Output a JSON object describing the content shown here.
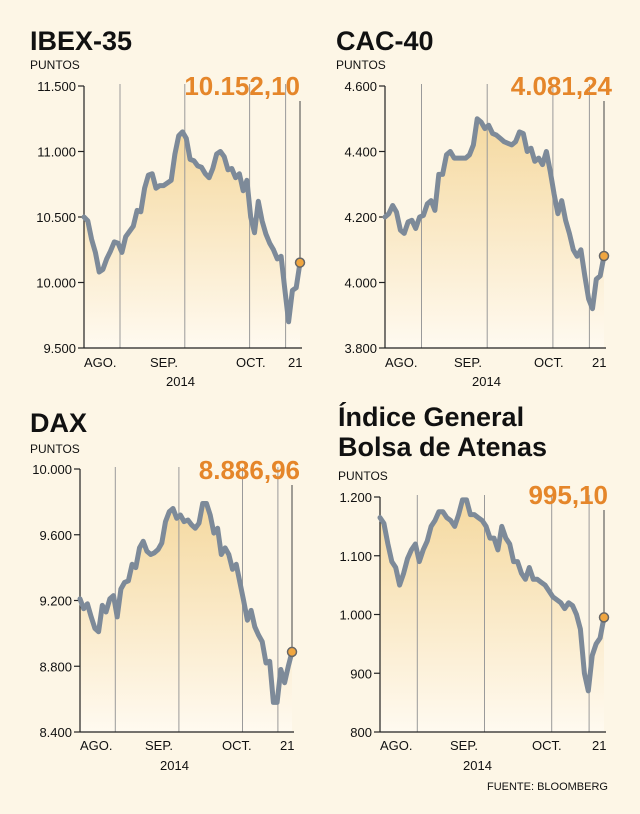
{
  "source": "FUENTE: BLOOMBERG",
  "colors": {
    "background": "#fdf6e6",
    "line": "#7d8a99",
    "marker": "#f0a640",
    "value_text": "#e5862a",
    "area_top": "#f5d9a0",
    "area_bottom": "#fffaf0"
  },
  "chart_data": [
    {
      "type": "area",
      "title": "IBEX-35",
      "unit": "PUNTOS",
      "last_value_label": "10.152,10",
      "yticks": [
        "11.500",
        "11.000",
        "10.500",
        "10.000",
        "9.500"
      ],
      "ylim": [
        9500,
        11500
      ],
      "xlabels": [
        "AGO.",
        "SEP.",
        "2014",
        "OCT.",
        "21"
      ],
      "x_range": [
        0,
        60
      ],
      "separators": [
        10,
        28,
        46,
        56
      ],
      "marker_index": 60,
      "values": [
        10500,
        10470,
        10330,
        10230,
        10080,
        10100,
        10180,
        10240,
        10310,
        10300,
        10230,
        10350,
        10390,
        10430,
        10550,
        10540,
        10720,
        10820,
        10830,
        10720,
        10740,
        10740,
        10760,
        10780,
        10980,
        11120,
        11150,
        11100,
        10940,
        10930,
        10890,
        10880,
        10830,
        10800,
        10870,
        10980,
        11000,
        10960,
        10860,
        10870,
        10800,
        10830,
        10700,
        10780,
        10500,
        10380,
        10620,
        10470,
        10370,
        10300,
        10250,
        10180,
        10200,
        9950,
        9700,
        9940,
        9960,
        10152
      ]
    },
    {
      "type": "area",
      "title": "CAC-40",
      "unit": "PUNTOS",
      "last_value_label": "4.081,24",
      "yticks": [
        "4.600",
        "4.400",
        "4.200",
        "4.000",
        "3.800"
      ],
      "ylim": [
        3800,
        4600
      ],
      "xlabels": [
        "AGO.",
        "SEP.",
        "2014",
        "OCT.",
        "21"
      ],
      "x_range": [
        0,
        60
      ],
      "separators": [
        10,
        28,
        46,
        56
      ],
      "marker_index": 60,
      "values": [
        4200,
        4210,
        4235,
        4215,
        4160,
        4150,
        4185,
        4190,
        4165,
        4200,
        4205,
        4240,
        4250,
        4220,
        4330,
        4330,
        4390,
        4400,
        4380,
        4380,
        4380,
        4380,
        4390,
        4420,
        4500,
        4490,
        4470,
        4480,
        4455,
        4450,
        4440,
        4430,
        4425,
        4420,
        4430,
        4460,
        4455,
        4400,
        4410,
        4370,
        4380,
        4360,
        4400,
        4340,
        4270,
        4210,
        4250,
        4190,
        4150,
        4100,
        4080,
        4100,
        4020,
        3950,
        3920,
        4010,
        4020,
        4081
      ]
    },
    {
      "type": "area",
      "title": "DAX",
      "unit": "PUNTOS",
      "last_value_label": "8.886,96",
      "yticks": [
        "10.000",
        "9.600",
        "9.200",
        "8.800",
        "8.400"
      ],
      "ylim": [
        8400,
        10000
      ],
      "xlabels": [
        "AGO.",
        "SEP.",
        "2014",
        "OCT.",
        "21"
      ],
      "x_range": [
        0,
        60
      ],
      "separators": [
        10,
        28,
        46,
        56
      ],
      "marker_index": 60,
      "values": [
        9210,
        9150,
        9180,
        9100,
        9030,
        9010,
        9170,
        9130,
        9210,
        9230,
        9100,
        9270,
        9310,
        9320,
        9420,
        9400,
        9520,
        9560,
        9500,
        9480,
        9490,
        9510,
        9550,
        9680,
        9740,
        9760,
        9700,
        9720,
        9680,
        9690,
        9660,
        9640,
        9670,
        9790,
        9790,
        9720,
        9610,
        9640,
        9480,
        9520,
        9480,
        9390,
        9420,
        9310,
        9200,
        9080,
        9140,
        9040,
        8990,
        8950,
        8820,
        8830,
        8580,
        8580,
        8780,
        8700,
        8800,
        8887
      ]
    },
    {
      "type": "area",
      "title": "Índice General",
      "title2": "Bolsa de Atenas",
      "unit": "PUNTOS",
      "last_value_label": "995,10",
      "yticks": [
        "1.200",
        "1.100",
        "1.000",
        "900",
        "800"
      ],
      "ylim": [
        800,
        1200
      ],
      "xlabels": [
        "AGO.",
        "SEP.",
        "2014",
        "OCT.",
        "21"
      ],
      "x_range": [
        0,
        60
      ],
      "separators": [
        10,
        28,
        46,
        56
      ],
      "marker_index": 60,
      "values": [
        1165,
        1155,
        1120,
        1090,
        1080,
        1050,
        1070,
        1095,
        1110,
        1120,
        1090,
        1110,
        1125,
        1150,
        1160,
        1175,
        1175,
        1165,
        1160,
        1150,
        1170,
        1195,
        1195,
        1170,
        1170,
        1165,
        1160,
        1150,
        1130,
        1130,
        1110,
        1150,
        1130,
        1120,
        1090,
        1090,
        1070,
        1060,
        1080,
        1060,
        1060,
        1055,
        1050,
        1040,
        1030,
        1025,
        1020,
        1010,
        1020,
        1015,
        1000,
        975,
        900,
        870,
        930,
        950,
        960,
        995
      ]
    }
  ]
}
